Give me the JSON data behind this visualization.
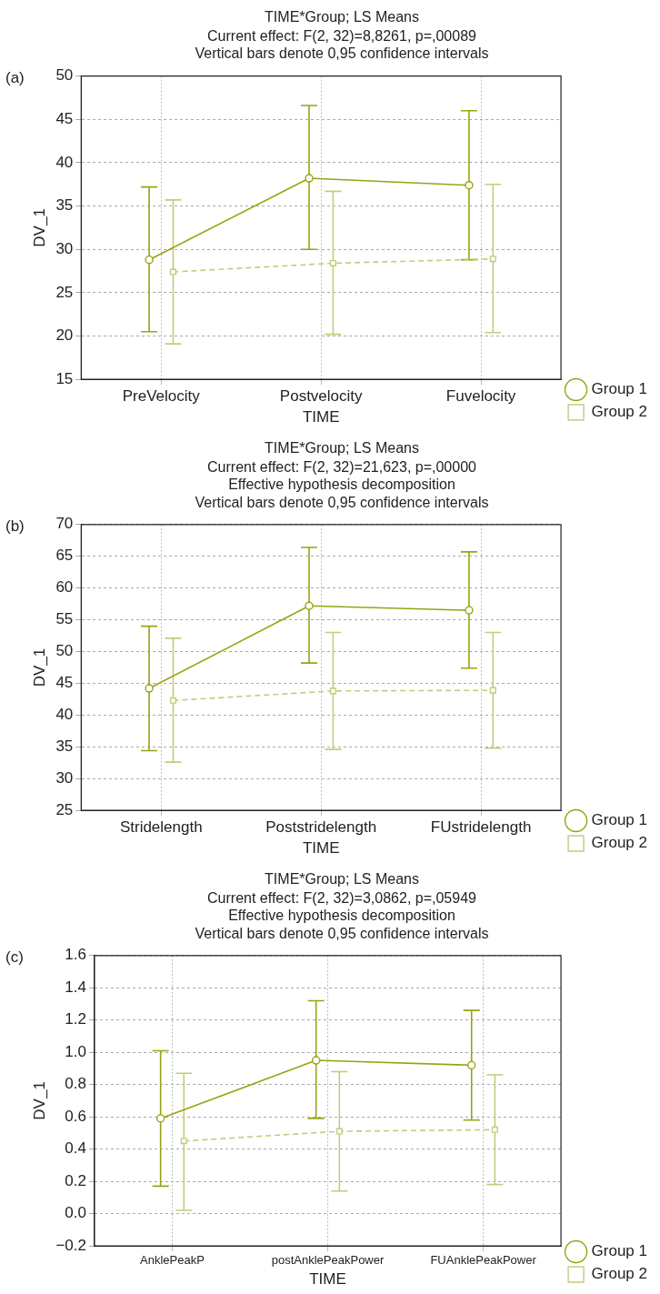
{
  "chart_data": [
    {
      "type": "line",
      "title": "TIME*Group; LS Means",
      "subtitle": "Current effect: F(2, 32)=8,8261, p=,00089\nVertical bars denote 0,95 confidence intervals",
      "annotations": [
        "(a)"
      ],
      "xlabel": "TIME",
      "ylabel": "DV_1",
      "categories": [
        "PreVelocity",
        "Postvelocity",
        "Fuvelocity"
      ],
      "ylim": [
        15,
        50
      ],
      "yticks": [
        15,
        20,
        25,
        30,
        35,
        40,
        45,
        50
      ],
      "grid": true,
      "legend": "right",
      "series": [
        {
          "name": "Group 1",
          "color": "#99a312",
          "marker": "circle",
          "line_style": "solid",
          "values": [
            28.8,
            38.2,
            37.4
          ],
          "errors": [
            [
              20.5,
              37.2
            ],
            [
              30.0,
              46.6
            ],
            [
              28.8,
              46.0
            ]
          ]
        },
        {
          "name": "Group 2",
          "color": "#c5cb7c",
          "marker": "square",
          "line_style": "dashed",
          "values": [
            27.4,
            28.4,
            28.9
          ],
          "errors": [
            [
              19.1,
              35.7
            ],
            [
              20.2,
              36.7
            ],
            [
              20.4,
              37.5
            ]
          ]
        }
      ]
    },
    {
      "type": "line",
      "title": "TIME*Group; LS Means",
      "subtitle": "Current effect: F(2, 32)=21,623, p=,00000\nEffective hypothesis decomposition\nVertical bars denote 0,95 confidence intervals",
      "annotations": [
        "(b)"
      ],
      "xlabel": "TIME",
      "ylabel": "DV_1",
      "categories": [
        "Stridelength",
        "Poststridelength",
        "FUstridelength"
      ],
      "ylim": [
        25,
        70
      ],
      "yticks": [
        25,
        30,
        35,
        40,
        45,
        50,
        55,
        60,
        65,
        70
      ],
      "grid": true,
      "legend": "right",
      "series": [
        {
          "name": "Group 1",
          "color": "#99a312",
          "marker": "circle",
          "line_style": "solid",
          "values": [
            44.2,
            57.2,
            56.5
          ],
          "errors": [
            [
              34.4,
              54.0
            ],
            [
              48.2,
              66.4
            ],
            [
              47.4,
              65.7
            ]
          ]
        },
        {
          "name": "Group 2",
          "color": "#c5cb7c",
          "marker": "square",
          "line_style": "dashed",
          "values": [
            42.3,
            43.8,
            43.9
          ],
          "errors": [
            [
              32.6,
              52.1
            ],
            [
              34.6,
              53.0
            ],
            [
              34.8,
              53.0
            ]
          ]
        }
      ]
    },
    {
      "type": "line",
      "title": "TIME*Group; LS Means",
      "subtitle": "Current effect: F(2, 32)=3,0862, p=,05949\nEffective hypothesis decomposition\nVertical bars denote 0,95 confidence intervals",
      "annotations": [
        "(c)"
      ],
      "xlabel": "TIME",
      "ylabel": "DV_1",
      "categories": [
        "AnklePeakP",
        "postAnklePeakPower",
        "FUAnklePeakPower"
      ],
      "ylim": [
        -0.2,
        1.6
      ],
      "yticks": [
        {
          "value": -0.2,
          "label": "−0.2"
        },
        {
          "value": 0,
          "label": "0.0"
        },
        {
          "value": 0.2,
          "label": "0.2"
        },
        {
          "value": 0.4,
          "label": "0.4"
        },
        {
          "value": 0.6,
          "label": "0.6"
        },
        {
          "value": 0.8,
          "label": "0.8"
        },
        {
          "value": 1,
          "label": "1.0"
        },
        {
          "value": 1.2,
          "label": "1.2"
        },
        {
          "value": 1.4,
          "label": "1.4"
        },
        {
          "value": 1.6,
          "label": "1.6"
        }
      ],
      "grid": true,
      "legend": "right",
      "series": [
        {
          "name": "Group 1",
          "color": "#99a312",
          "marker": "circle",
          "line_style": "solid",
          "values": [
            0.59,
            0.95,
            0.92
          ],
          "errors": [
            [
              0.17,
              1.01
            ],
            [
              0.59,
              1.32
            ],
            [
              0.58,
              1.26
            ]
          ]
        },
        {
          "name": "Group 2",
          "color": "#c5cb7c",
          "marker": "square",
          "line_style": "dashed",
          "values": [
            0.45,
            0.51,
            0.52
          ],
          "errors": [
            [
              0.02,
              0.87
            ],
            [
              0.14,
              0.88
            ],
            [
              0.18,
              0.86
            ]
          ]
        }
      ]
    }
  ]
}
